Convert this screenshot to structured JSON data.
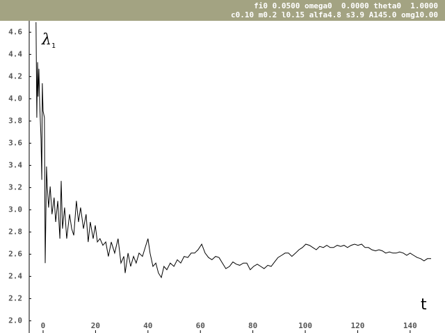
{
  "header": {
    "line1": "fi0 0.0500 omega0  0.0000 theta0  1.0000",
    "line2": "c0.10 m0.2 l0.15 alfa4.8 s3.9 A145.0 omg10.00"
  },
  "chart_data": {
    "type": "line",
    "y_label": "λ",
    "y_label_subscript": "1",
    "x_label": "t",
    "xlim": [
      -5.3,
      153.3
    ],
    "ylim": [
      1.89,
      4.69
    ],
    "xticks": [
      0,
      20,
      40,
      60,
      80,
      100,
      120,
      140
    ],
    "yticks": [
      {
        "value": 2.0,
        "label": "2.0"
      },
      2.2,
      2.4,
      2.6,
      2.8,
      {
        "value": 3.0,
        "label": "3.0"
      },
      3.2,
      3.4,
      3.6,
      3.8,
      {
        "value": 4.0,
        "label": "4.0"
      },
      4.2,
      4.4,
      4.6
    ],
    "grid": false,
    "series": [
      {
        "color": "#000000",
        "x": [
          -2.7,
          -2.4,
          -2.1,
          -1.9,
          -1.6,
          -1.3,
          -0.8,
          -0.5,
          -0.3,
          0,
          0.5,
          0.8,
          1.1,
          1.3,
          1.6,
          2.1,
          2.7,
          3.4,
          4.2,
          4.8,
          5.6,
          6.4,
          6.9,
          7.4,
          8.2,
          9.0,
          10.1,
          10.9,
          11.7,
          12.7,
          13.5,
          14.3,
          15.4,
          16.4,
          17.2,
          18.0,
          19.1,
          19.9,
          20.7,
          21.7,
          22.8,
          23.9,
          24.9,
          26.0,
          27.3,
          28.6,
          29.7,
          30.8,
          31.3,
          32.4,
          33.4,
          34.5,
          35.5,
          36.6,
          37.9,
          39.2,
          40.0,
          40.8,
          41.9,
          43.0,
          44.0,
          45.1,
          46.1,
          47.2,
          48.5,
          49.9,
          51.2,
          52.5,
          53.8,
          55.2,
          56.5,
          57.8,
          59.1,
          60.5,
          61.8,
          63.1,
          64.4,
          65.8,
          67.1,
          68.4,
          69.7,
          71.1,
          72.4,
          73.7,
          75.0,
          76.4,
          77.7,
          79.0,
          80.3,
          81.7,
          83.0,
          84.3,
          85.7,
          87.0,
          88.3,
          89.6,
          91.0,
          92.3,
          93.6,
          94.9,
          96.3,
          97.6,
          98.9,
          100.2,
          101.6,
          102.9,
          104.2,
          105.5,
          106.9,
          108.2,
          109.5,
          110.8,
          112.2,
          113.5,
          114.8,
          116.1,
          117.5,
          118.8,
          120.1,
          121.5,
          122.8,
          124.1,
          125.4,
          126.8,
          128.1,
          129.4,
          130.7,
          132.1,
          133.4,
          134.7,
          136.0,
          137.4,
          138.7,
          140.0,
          141.3,
          142.7,
          144.0,
          145.3,
          146.6,
          148.0
        ],
        "values": [
          4.69,
          3.83,
          4.33,
          4.02,
          4.27,
          3.96,
          3.64,
          3.27,
          4.14,
          3.89,
          3.83,
          2.52,
          3.02,
          3.39,
          3.21,
          3.02,
          3.21,
          2.96,
          3.11,
          2.89,
          3.08,
          2.74,
          3.26,
          2.83,
          3.02,
          2.74,
          2.96,
          2.83,
          2.77,
          3.08,
          2.89,
          3.02,
          2.83,
          2.96,
          2.71,
          2.89,
          2.74,
          2.86,
          2.71,
          2.74,
          2.68,
          2.71,
          2.58,
          2.71,
          2.61,
          2.74,
          2.52,
          2.58,
          2.43,
          2.61,
          2.49,
          2.58,
          2.52,
          2.61,
          2.58,
          2.68,
          2.74,
          2.61,
          2.49,
          2.52,
          2.43,
          2.39,
          2.49,
          2.46,
          2.52,
          2.49,
          2.55,
          2.52,
          2.58,
          2.57,
          2.61,
          2.61,
          2.64,
          2.69,
          2.61,
          2.57,
          2.55,
          2.58,
          2.57,
          2.52,
          2.47,
          2.49,
          2.53,
          2.51,
          2.5,
          2.52,
          2.52,
          2.46,
          2.49,
          2.51,
          2.49,
          2.47,
          2.5,
          2.49,
          2.53,
          2.57,
          2.59,
          2.61,
          2.61,
          2.58,
          2.61,
          2.64,
          2.66,
          2.69,
          2.68,
          2.66,
          2.64,
          2.67,
          2.66,
          2.68,
          2.66,
          2.66,
          2.68,
          2.67,
          2.68,
          2.66,
          2.68,
          2.69,
          2.68,
          2.69,
          2.66,
          2.66,
          2.64,
          2.63,
          2.64,
          2.63,
          2.61,
          2.62,
          2.61,
          2.61,
          2.62,
          2.61,
          2.59,
          2.61,
          2.59,
          2.57,
          2.56,
          2.54,
          2.56,
          2.56
        ]
      }
    ]
  }
}
